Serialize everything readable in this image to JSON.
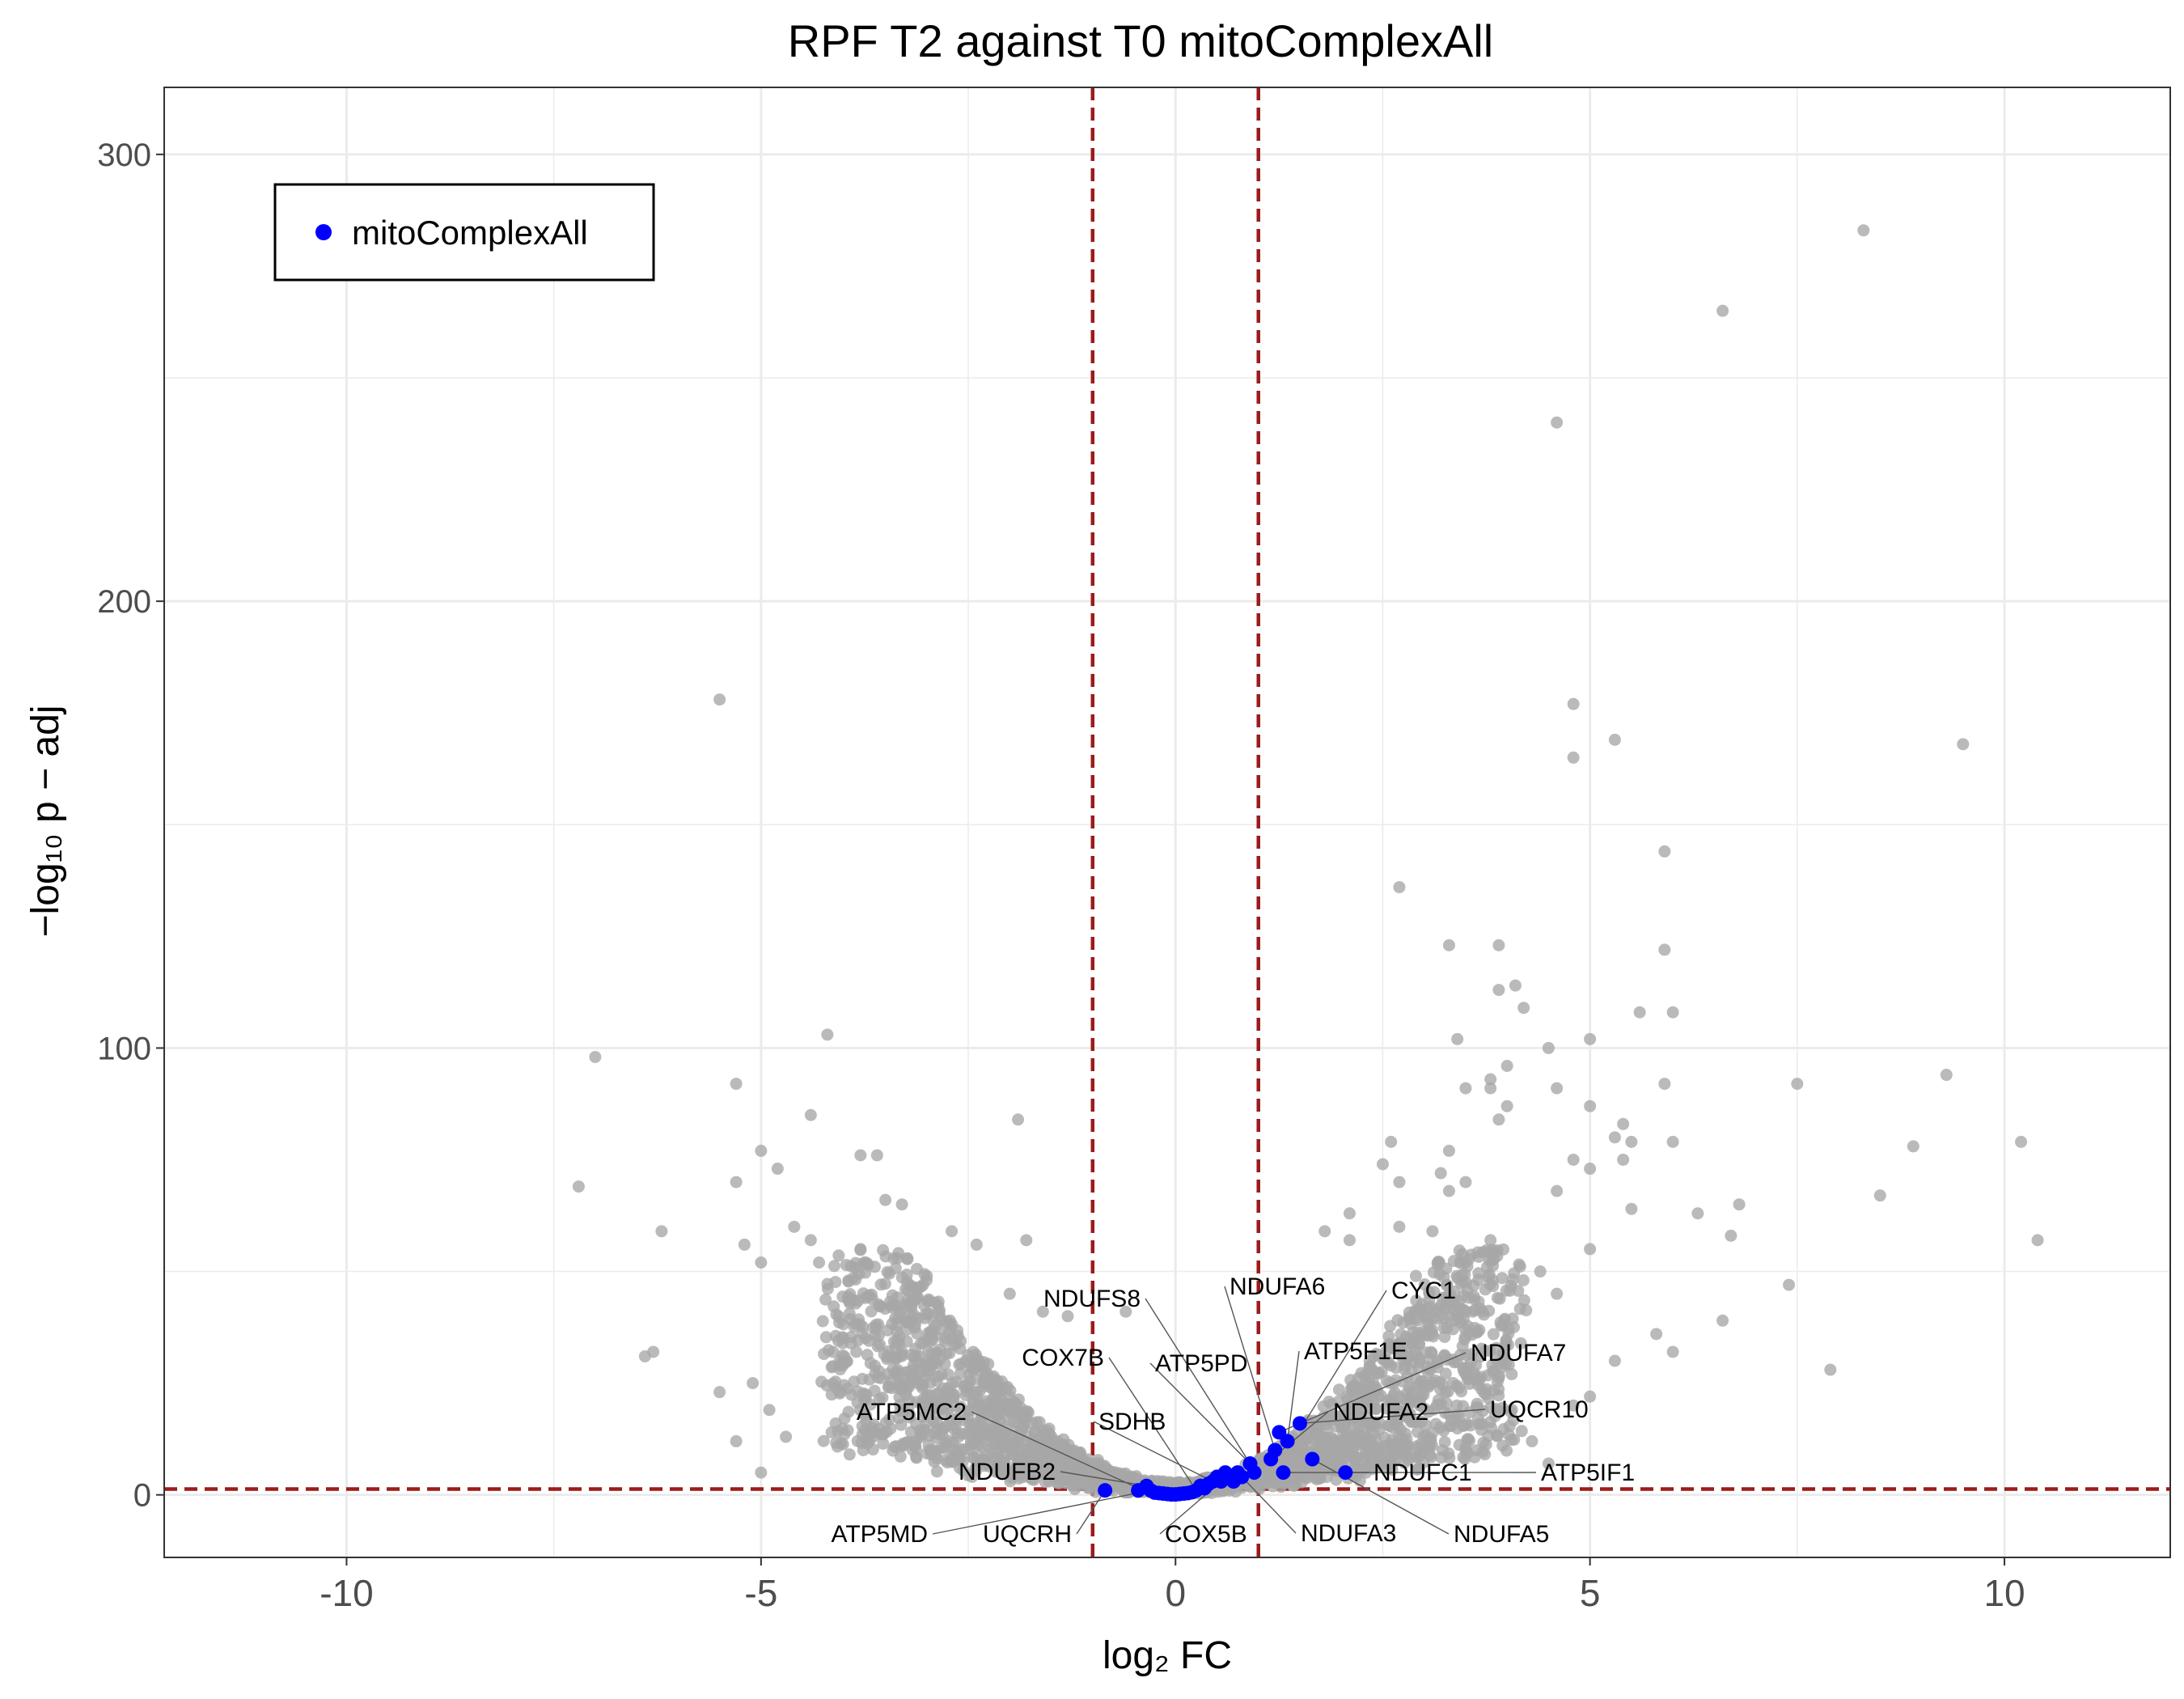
{
  "colors": {
    "background_points": "#a6a6a6",
    "highlight_points": "#0000ff",
    "threshold_lines": "#9b1b1b",
    "grid": "#ebebeb",
    "panel_border": "#333333"
  },
  "chart_data": {
    "type": "scatter",
    "title": "RPF T2 against T0 mitoComplexAll",
    "xlabel": "log₂ FC",
    "ylabel": "−log₁₀ p − adj",
    "xlim": [
      -12.2,
      12.0
    ],
    "ylim": [
      -14,
      315
    ],
    "x_ticks": [
      -10,
      -5,
      0,
      5,
      10
    ],
    "x_tick_labels": [
      "-10",
      "-5",
      "0",
      "5",
      "10"
    ],
    "y_ticks": [
      0,
      100,
      200,
      300
    ],
    "y_tick_labels": [
      "0",
      "100",
      "200",
      "300"
    ],
    "grid": true,
    "thresholds": {
      "x": [
        -1,
        1
      ],
      "y": 1.3
    },
    "legend": {
      "position": "top-left",
      "entries": [
        "mitoComplexAll"
      ]
    },
    "series": [
      {
        "name": "",
        "role": "background",
        "points": [
          [
            8.3,
            283
          ],
          [
            6.6,
            265
          ],
          [
            4.6,
            240
          ],
          [
            -5.5,
            178
          ],
          [
            4.8,
            177
          ],
          [
            5.3,
            169
          ],
          [
            9.5,
            168
          ],
          [
            4.8,
            165
          ],
          [
            5.9,
            144
          ],
          [
            2.7,
            136
          ],
          [
            3.3,
            123
          ],
          [
            3.9,
            123
          ],
          [
            5.9,
            122
          ],
          [
            4.1,
            114
          ],
          [
            3.9,
            113
          ],
          [
            4.2,
            109
          ],
          [
            5.6,
            108
          ],
          [
            6.0,
            108
          ],
          [
            -4.2,
            103
          ],
          [
            3.4,
            102
          ],
          [
            5.0,
            102
          ],
          [
            4.5,
            100
          ],
          [
            -7.0,
            98
          ],
          [
            4.0,
            96
          ],
          [
            3.8,
            93
          ],
          [
            3.5,
            91
          ],
          [
            4.6,
            91
          ],
          [
            5.9,
            92
          ],
          [
            7.5,
            92
          ],
          [
            9.3,
            94
          ],
          [
            -5.3,
            92
          ],
          [
            3.8,
            91
          ],
          [
            4.0,
            87
          ],
          [
            5.0,
            87
          ],
          [
            -4.4,
            85
          ],
          [
            -1.9,
            84
          ],
          [
            3.9,
            84
          ],
          [
            5.4,
            83
          ],
          [
            6.0,
            79
          ],
          [
            5.3,
            80
          ],
          [
            5.5,
            79
          ],
          [
            2.6,
            79
          ],
          [
            3.3,
            77
          ],
          [
            -5.0,
            77
          ],
          [
            8.9,
            78
          ],
          [
            10.2,
            79
          ],
          [
            -4.8,
            73
          ],
          [
            -3.8,
            76
          ],
          [
            -3.6,
            76
          ],
          [
            5.0,
            73
          ],
          [
            5.4,
            75
          ],
          [
            2.5,
            74
          ],
          [
            4.8,
            75
          ],
          [
            3.2,
            72
          ],
          [
            -7.2,
            69
          ],
          [
            -5.3,
            70
          ],
          [
            3.5,
            70
          ],
          [
            4.6,
            68
          ],
          [
            6.8,
            65
          ],
          [
            8.5,
            67
          ],
          [
            2.7,
            70
          ],
          [
            3.3,
            68
          ],
          [
            2.1,
            63
          ],
          [
            6.3,
            63
          ],
          [
            5.5,
            64
          ],
          [
            -3.3,
            65
          ],
          [
            -3.5,
            66
          ],
          [
            -2.7,
            59
          ],
          [
            -6.2,
            59
          ],
          [
            -4.6,
            60
          ],
          [
            -1.8,
            57
          ],
          [
            -2.4,
            56
          ],
          [
            -5.2,
            56
          ],
          [
            -4.4,
            57
          ],
          [
            1.8,
            59
          ],
          [
            2.1,
            57
          ],
          [
            2.7,
            60
          ],
          [
            3.1,
            59
          ],
          [
            3.8,
            57
          ],
          [
            5.0,
            55
          ],
          [
            6.7,
            58
          ],
          [
            10.4,
            57
          ],
          [
            4.4,
            50
          ],
          [
            3.5,
            52
          ],
          [
            2.9,
            49
          ],
          [
            -4.3,
            52
          ],
          [
            -3.8,
            55
          ],
          [
            -5.0,
            52
          ],
          [
            -3.0,
            49
          ],
          [
            -2.0,
            45
          ],
          [
            4.6,
            45
          ],
          [
            3.7,
            41
          ],
          [
            -6.4,
            31
          ],
          [
            -6.3,
            32
          ],
          [
            6.6,
            39
          ],
          [
            7.4,
            47
          ],
          [
            5.8,
            36
          ],
          [
            6.0,
            32
          ],
          [
            7.9,
            28
          ],
          [
            -1.6,
            41
          ],
          [
            -1.3,
            40
          ],
          [
            -0.6,
            41
          ],
          [
            -5.1,
            25
          ],
          [
            -5.5,
            23
          ],
          [
            -4.9,
            19
          ],
          [
            -4.1,
            16
          ],
          [
            -5.3,
            12
          ],
          [
            -4.7,
            13
          ],
          [
            -5.0,
            5
          ],
          [
            5.3,
            30
          ],
          [
            4.8,
            20
          ],
          [
            5.0,
            22
          ],
          [
            4.3,
            12
          ],
          [
            4.5,
            7
          ]
        ]
      },
      {
        "name": "mitoComplexAll",
        "role": "highlight",
        "points": [
          [
            -0.85,
            1
          ],
          [
            -0.45,
            1
          ],
          [
            -0.35,
            2
          ],
          [
            -0.3,
            1
          ],
          [
            -0.25,
            0.5
          ],
          [
            -0.2,
            0.4
          ],
          [
            -0.15,
            0.3
          ],
          [
            -0.1,
            0.2
          ],
          [
            -0.05,
            0.1
          ],
          [
            0.0,
            0.1
          ],
          [
            0.05,
            0.2
          ],
          [
            0.1,
            0.3
          ],
          [
            0.15,
            0.4
          ],
          [
            0.2,
            0.6
          ],
          [
            0.25,
            1
          ],
          [
            0.3,
            2
          ],
          [
            0.35,
            1.5
          ],
          [
            0.4,
            2.5
          ],
          [
            0.45,
            3
          ],
          [
            0.5,
            4
          ],
          [
            0.55,
            3
          ],
          [
            0.6,
            5
          ],
          [
            0.65,
            4
          ],
          [
            0.7,
            3
          ],
          [
            0.75,
            5
          ],
          [
            0.8,
            4
          ],
          [
            0.9,
            7
          ],
          [
            0.95,
            5
          ],
          [
            1.15,
            8
          ],
          [
            1.2,
            10
          ],
          [
            1.25,
            14
          ],
          [
            1.35,
            12
          ],
          [
            1.5,
            16
          ],
          [
            1.65,
            8
          ],
          [
            1.3,
            5
          ],
          [
            2.05,
            5
          ]
        ]
      }
    ],
    "annotations": [
      {
        "label": "NDUFS8",
        "x": 0.95,
        "y": 5.5
      },
      {
        "label": "NDUFA6",
        "x": 1.2,
        "y": 10
      },
      {
        "label": "CYC1",
        "x": 1.55,
        "y": 16
      },
      {
        "label": "COX7B",
        "x": 0.25,
        "y": 1
      },
      {
        "label": "ATP5PD",
        "x": 0.9,
        "y": 7
      },
      {
        "label": "ATP5F1E",
        "x": 1.35,
        "y": 12
      },
      {
        "label": "NDUFA7",
        "x": 1.25,
        "y": 14
      },
      {
        "label": "ATP5MC2",
        "x": -0.45,
        "y": 1.5
      },
      {
        "label": "SDHB",
        "x": 0.45,
        "y": 3
      },
      {
        "label": "NDUFA2",
        "x": 1.15,
        "y": 8
      },
      {
        "label": "UQCR10",
        "x": 1.5,
        "y": 16
      },
      {
        "label": "NDUFB2",
        "x": -0.35,
        "y": 2
      },
      {
        "label": "NDUFC1",
        "x": 1.3,
        "y": 5
      },
      {
        "label": "ATP5IF1",
        "x": 2.05,
        "y": 5
      },
      {
        "label": "ATP5MD",
        "x": -0.3,
        "y": 1
      },
      {
        "label": "UQCRH",
        "x": -0.85,
        "y": 1
      },
      {
        "label": "COX5B",
        "x": 0.55,
        "y": 3
      },
      {
        "label": "NDUFA3",
        "x": 0.75,
        "y": 5
      },
      {
        "label": "NDUFA5",
        "x": 1.65,
        "y": 8
      }
    ]
  }
}
